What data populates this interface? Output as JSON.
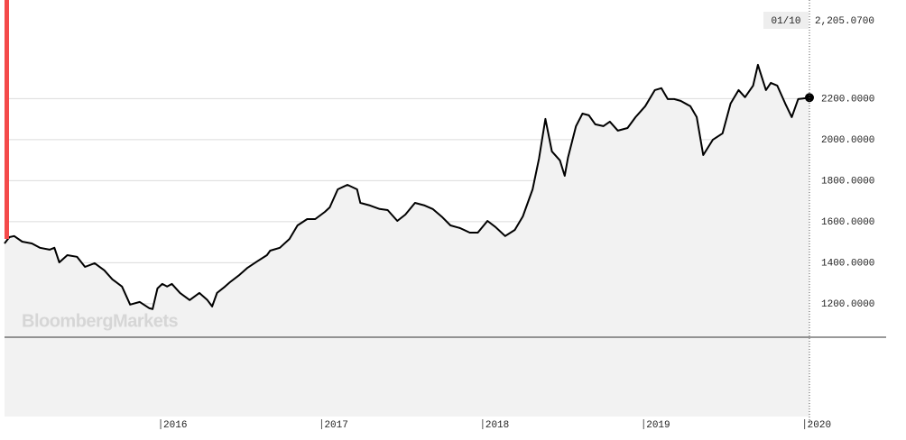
{
  "chart_data": {
    "type": "line",
    "watermark": "BloombergMarkets",
    "annotation_date": "01/10",
    "annotation_value": "2,205.0700",
    "color": "#000000",
    "fill": "#f2f2f2",
    "grid": true,
    "xlim": [
      2015.03,
      2020.03
    ],
    "ylim": [
      1037,
      2681
    ],
    "xticks": [
      2016,
      2017,
      2018,
      2019,
      2020
    ],
    "yticks": [
      {
        "value": 1200,
        "label": "1200.0000"
      },
      {
        "value": 1400,
        "label": "1400.0000"
      },
      {
        "value": 1600,
        "label": "1600.0000"
      },
      {
        "value": 1800,
        "label": "1800.0000"
      },
      {
        "value": 2000,
        "label": "2000.0000"
      },
      {
        "value": 2200,
        "label": "2200.0000"
      }
    ],
    "x": [
      2015.03,
      2015.06,
      2015.09,
      2015.14,
      2015.2,
      2015.25,
      2015.31,
      2015.34,
      2015.37,
      2015.42,
      2015.48,
      2015.53,
      2015.59,
      2015.65,
      2015.7,
      2015.76,
      2015.81,
      2015.87,
      2015.93,
      2015.95,
      2015.98,
      2016.01,
      2016.04,
      2016.07,
      2016.12,
      2016.18,
      2016.24,
      2016.29,
      2016.32,
      2016.35,
      2016.4,
      2016.43,
      2016.49,
      2016.54,
      2016.6,
      2016.66,
      2016.68,
      2016.74,
      2016.8,
      2016.85,
      2016.91,
      2016.96,
      2017.02,
      2017.05,
      2017.1,
      2017.16,
      2017.22,
      2017.24,
      2017.3,
      2017.36,
      2017.41,
      2017.47,
      2017.52,
      2017.58,
      2017.64,
      2017.69,
      2017.75,
      2017.8,
      2017.86,
      2017.92,
      2017.97,
      2018.03,
      2018.08,
      2018.14,
      2018.2,
      2018.25,
      2018.31,
      2018.35,
      2018.39,
      2018.43,
      2018.48,
      2018.51,
      2018.53,
      2018.58,
      2018.62,
      2018.66,
      2018.7,
      2018.75,
      2018.79,
      2018.84,
      2018.9,
      2018.95,
      2019.01,
      2019.07,
      2019.11,
      2019.15,
      2019.19,
      2019.23,
      2019.29,
      2019.33,
      2019.37,
      2019.43,
      2019.49,
      2019.54,
      2019.59,
      2019.63,
      2019.68,
      2019.71,
      2019.76,
      2019.79,
      2019.83,
      2019.88,
      2019.92,
      2019.96,
      2020.03
    ],
    "values": [
      1494,
      1525,
      1530,
      1503,
      1494,
      1473,
      1464,
      1473,
      1402,
      1437,
      1429,
      1380,
      1398,
      1363,
      1319,
      1284,
      1196,
      1209,
      1178,
      1174,
      1275,
      1297,
      1284,
      1297,
      1253,
      1218,
      1253,
      1218,
      1187,
      1253,
      1284,
      1305,
      1341,
      1376,
      1407,
      1437,
      1459,
      1473,
      1516,
      1582,
      1613,
      1613,
      1648,
      1670,
      1758,
      1780,
      1758,
      1692,
      1679,
      1662,
      1657,
      1604,
      1635,
      1692,
      1679,
      1662,
      1622,
      1582,
      1569,
      1547,
      1547,
      1604,
      1574,
      1530,
      1560,
      1626,
      1758,
      1908,
      2101,
      1943,
      1899,
      1824,
      1912,
      2066,
      2127,
      2119,
      2075,
      2066,
      2088,
      2044,
      2057,
      2110,
      2163,
      2242,
      2251,
      2198,
      2198,
      2189,
      2163,
      2110,
      1925,
      2000,
      2031,
      2176,
      2242,
      2207,
      2264,
      2365,
      2242,
      2277,
      2264,
      2176,
      2110,
      2198,
      2205.07
    ]
  }
}
